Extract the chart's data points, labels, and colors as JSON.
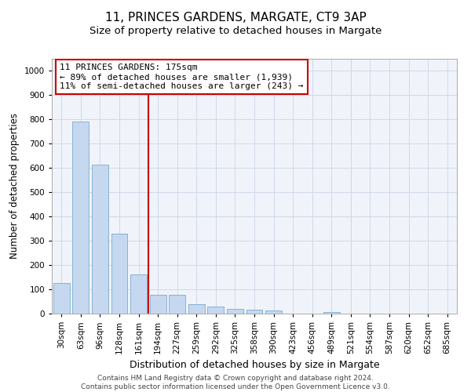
{
  "title": "11, PRINCES GARDENS, MARGATE, CT9 3AP",
  "subtitle": "Size of property relative to detached houses in Margate",
  "xlabel": "Distribution of detached houses by size in Margate",
  "ylabel": "Number of detached properties",
  "categories": [
    "30sqm",
    "63sqm",
    "96sqm",
    "128sqm",
    "161sqm",
    "194sqm",
    "227sqm",
    "259sqm",
    "292sqm",
    "325sqm",
    "358sqm",
    "390sqm",
    "423sqm",
    "456sqm",
    "489sqm",
    "521sqm",
    "554sqm",
    "587sqm",
    "620sqm",
    "652sqm",
    "685sqm"
  ],
  "values": [
    125,
    790,
    615,
    328,
    160,
    78,
    78,
    38,
    30,
    20,
    15,
    13,
    0,
    0,
    8,
    0,
    0,
    0,
    0,
    0,
    0
  ],
  "bar_color": "#c5d8f0",
  "bar_edgecolor": "#7aabcc",
  "marker_line_color": "#cc0000",
  "annotation_text": "11 PRINCES GARDENS: 175sqm\n← 89% of detached houses are smaller (1,939)\n11% of semi-detached houses are larger (243) →",
  "annotation_box_edgecolor": "#cc0000",
  "ylim": [
    0,
    1050
  ],
  "yticks": [
    0,
    100,
    200,
    300,
    400,
    500,
    600,
    700,
    800,
    900,
    1000
  ],
  "grid_color": "#d0d8e8",
  "bg_color": "#f0f4fa",
  "footnote": "Contains HM Land Registry data © Crown copyright and database right 2024.\nContains public sector information licensed under the Open Government Licence v3.0.",
  "title_fontsize": 11,
  "subtitle_fontsize": 9.5,
  "xlabel_fontsize": 9,
  "ylabel_fontsize": 8.5,
  "tick_fontsize": 7.5,
  "annot_fontsize": 8,
  "footnote_fontsize": 6.5
}
